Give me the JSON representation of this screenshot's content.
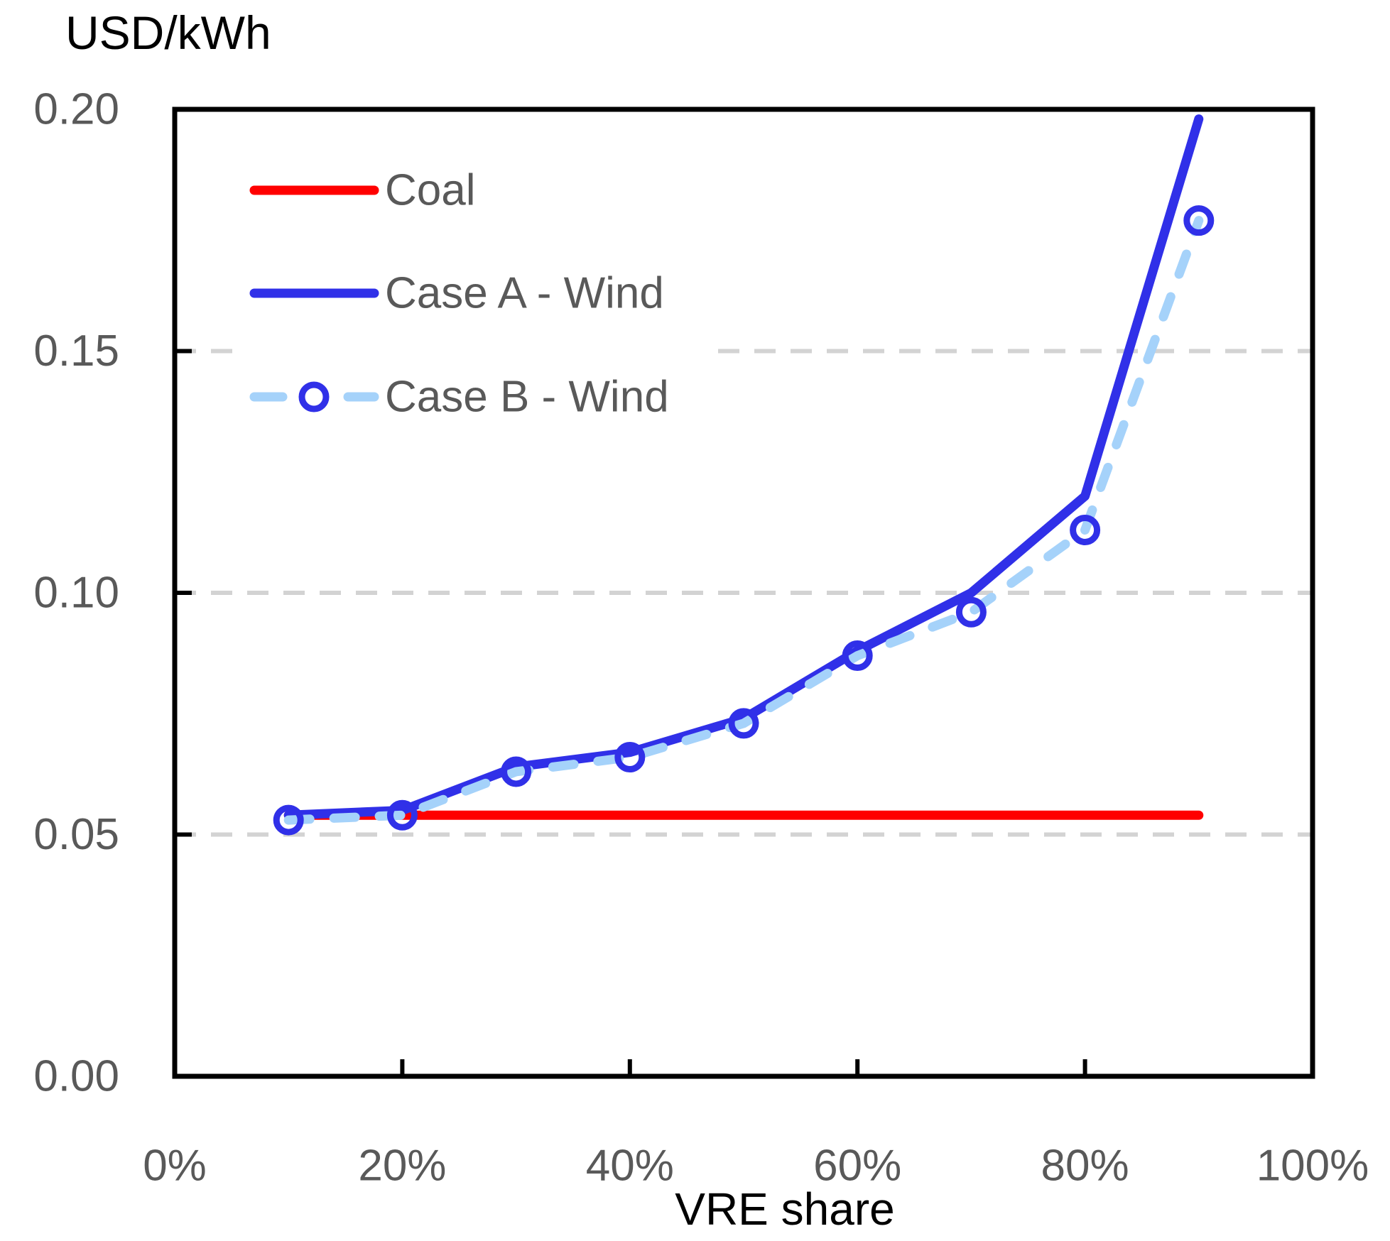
{
  "colors": {
    "background": "#FFFFFF",
    "axis_line": "#000000",
    "tick_label": "#595959",
    "gridline": "#D3D3D3",
    "coal_red": "#FF0000",
    "case_a_blue": "#3030E8",
    "case_b_light_blue": "#A5D2FA",
    "marker_blue": "#3030E8"
  },
  "chart_data": {
    "type": "line",
    "title": "USD/kWh",
    "xlabel": "VRE share",
    "ylabel": "USD/kWh",
    "xlim": [
      0,
      100
    ],
    "ylim": [
      0,
      0.2
    ],
    "x_tick_values": [
      0,
      20,
      40,
      60,
      80,
      100
    ],
    "x_tick_labels": [
      "0%",
      "20%",
      "40%",
      "60%",
      "80%",
      "100%"
    ],
    "y_tick_values": [
      0,
      0.05,
      0.1,
      0.15,
      0.2
    ],
    "y_tick_labels": [
      "0.00",
      "0.05",
      "0.10",
      "0.15",
      "0.20"
    ],
    "grid_y_values": [
      0.05,
      0.1,
      0.15
    ],
    "grid_style": "dashed-horizontal",
    "legend_position": "inside-top-left",
    "x": [
      10,
      20,
      30,
      40,
      50,
      60,
      70,
      80,
      90
    ],
    "series": [
      {
        "name": "Coal",
        "style": "solid",
        "color": "#FF0000",
        "marker": "none",
        "values": [
          0.054,
          0.054,
          0.054,
          0.054,
          0.054,
          0.054,
          0.054,
          0.054,
          0.054
        ]
      },
      {
        "name": "Case A - Wind",
        "style": "solid",
        "color": "#3030E8",
        "marker": "none",
        "values": [
          0.054,
          0.055,
          0.064,
          0.067,
          0.074,
          0.088,
          0.1,
          0.12,
          0.198
        ]
      },
      {
        "name": "Case B - Wind",
        "style": "dashed",
        "color": "#A5D2FA",
        "marker": "circle",
        "marker_color": "#3030E8",
        "values": [
          0.053,
          0.054,
          0.063,
          0.066,
          0.073,
          0.087,
          0.096,
          0.113,
          0.177
        ]
      }
    ]
  }
}
